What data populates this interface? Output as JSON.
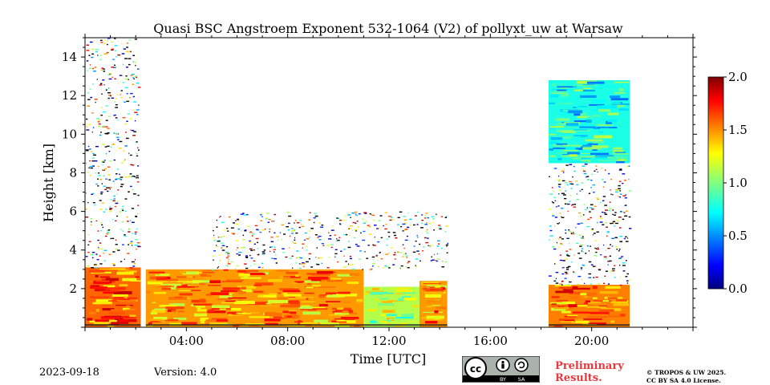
{
  "chart_data": {
    "type": "heatmap",
    "title": "Quasi BSC Angstroem Exponent 532-1064 (V2) of pollyxt_uw at Warsaw",
    "xlabel": "Time [UTC]",
    "ylabel": "Height [km]",
    "xlim": [
      0,
      24
    ],
    "ylim": [
      0,
      15
    ],
    "x_tick_labels": [
      "04:00",
      "08:00",
      "12:00",
      "16:00",
      "20:00"
    ],
    "x_tick_values": [
      4,
      8,
      12,
      16,
      20
    ],
    "y_tick_labels": [
      "2",
      "4",
      "6",
      "8",
      "10",
      "12",
      "14"
    ],
    "y_tick_values": [
      2,
      4,
      6,
      8,
      10,
      12,
      14
    ],
    "colorbar": {
      "min": 0.0,
      "max": 2.0,
      "tick_labels": [
        "0.0",
        "0.5",
        "1.0",
        "1.5",
        "2.0"
      ],
      "tick_values": [
        0.0,
        0.5,
        1.0,
        1.5,
        2.0
      ],
      "colormap": "jet"
    },
    "regions": [
      {
        "t0": 0.0,
        "t1": 2.2,
        "h0": 0.0,
        "h1": 3.1,
        "value": 1.55
      },
      {
        "t0": 2.4,
        "t1": 11.0,
        "h0": 0.0,
        "h1": 3.0,
        "value": 1.45
      },
      {
        "t0": 11.0,
        "t1": 13.2,
        "h0": 0.0,
        "h1": 2.1,
        "value": 1.1
      },
      {
        "t0": 13.2,
        "t1": 14.3,
        "h0": 0.0,
        "h1": 2.4,
        "value": 1.45
      },
      {
        "t0": 18.3,
        "t1": 21.5,
        "h0": 0.0,
        "h1": 2.2,
        "value": 1.5
      },
      {
        "t0": 18.3,
        "t1": 21.5,
        "h0": 8.5,
        "h1": 12.8,
        "value": 0.8
      }
    ],
    "scatter_regions": [
      {
        "t0": 0.0,
        "t1": 2.1,
        "h0": 3.1,
        "h1": 15.0
      },
      {
        "t0": 5.0,
        "t1": 14.3,
        "h0": 3.0,
        "h1": 6.0
      },
      {
        "t0": 18.3,
        "t1": 21.5,
        "h0": 2.2,
        "h1": 8.5
      }
    ],
    "grid": false
  },
  "footer": {
    "date": "2023-09-18",
    "version": "Version: 4.0",
    "preliminary": "Preliminary Results.",
    "license_line1": "© TROPOS & UW 2025.",
    "license_line2": "CC BY SA 4.0 License."
  }
}
